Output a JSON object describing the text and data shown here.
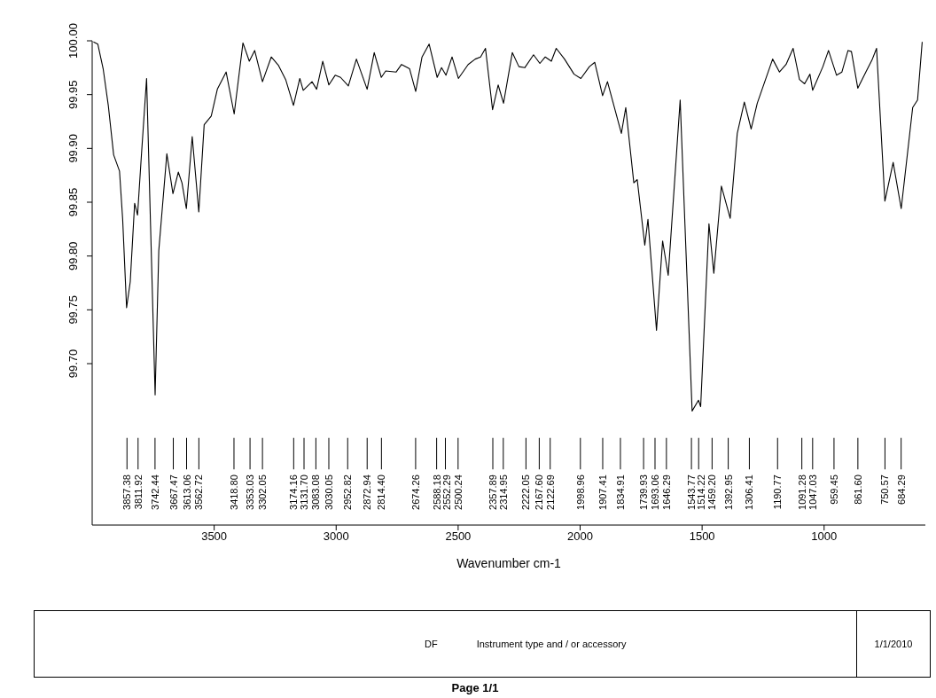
{
  "chart_data": {
    "type": "line",
    "xlabel": "Wavenumber cm-1",
    "xlim": [
      4000,
      585
    ],
    "xticks": [
      3500,
      3000,
      2500,
      2000,
      1500,
      1000
    ],
    "ylim": [
      99.55,
      100.0
    ],
    "yticks": [
      {
        "value": 99.7,
        "label": "99.70"
      },
      {
        "value": 99.75,
        "label": "99.75"
      },
      {
        "value": 99.8,
        "label": "99.80"
      },
      {
        "value": 99.85,
        "label": "99.85"
      },
      {
        "value": 99.9,
        "label": "99.90"
      },
      {
        "value": 99.95,
        "label": "99.95"
      },
      {
        "value": 100.0,
        "label": "100.00"
      }
    ],
    "marker": "none",
    "line_style": "solid",
    "series": [
      {
        "color": "#000000",
        "x": [
          3995,
          3977,
          3955,
          3934,
          3912,
          3888,
          3875,
          3859,
          3844,
          3826,
          3814,
          3799,
          3777,
          3742,
          3727,
          3694,
          3669,
          3647,
          3632,
          3614,
          3590,
          3563,
          3541,
          3512,
          3487,
          3451,
          3418,
          3382,
          3356,
          3334,
          3302,
          3266,
          3236,
          3207,
          3175,
          3149,
          3135,
          3099,
          3080,
          3055,
          3030,
          3004,
          2982,
          2950,
          2917,
          2873,
          2844,
          2815,
          2797,
          2754,
          2732,
          2699,
          2674,
          2648,
          2619,
          2586,
          2568,
          2550,
          2525,
          2499,
          2459,
          2430,
          2408,
          2388,
          2359,
          2336,
          2314,
          2278,
          2251,
          2227,
          2191,
          2165,
          2143,
          2118,
          2098,
          2064,
          2025,
          1997,
          1962,
          1940,
          1908,
          1888,
          1831,
          1813,
          1780,
          1766,
          1735,
          1722,
          1687,
          1662,
          1639,
          1590,
          1541,
          1515,
          1506,
          1472,
          1452,
          1421,
          1385,
          1356,
          1327,
          1299,
          1274,
          1211,
          1183,
          1156,
          1127,
          1101,
          1080,
          1058,
          1047,
          1005,
          982,
          949,
          927,
          902,
          888,
          862,
          829,
          804,
          785,
          751,
          717,
          684,
          637,
          617,
          598
        ],
        "values": [
          99.999,
          99.997,
          99.974,
          99.94,
          99.894,
          99.879,
          99.834,
          99.752,
          99.776,
          99.849,
          99.838,
          99.891,
          99.965,
          99.671,
          99.805,
          99.895,
          99.858,
          99.878,
          99.868,
          99.844,
          99.911,
          99.841,
          99.922,
          99.93,
          99.955,
          99.971,
          99.932,
          99.998,
          99.981,
          99.991,
          99.962,
          99.985,
          99.977,
          99.964,
          99.94,
          99.965,
          99.954,
          99.962,
          99.955,
          99.981,
          99.959,
          99.968,
          99.966,
          99.958,
          99.983,
          99.955,
          99.989,
          99.966,
          99.972,
          99.971,
          99.978,
          99.974,
          99.953,
          99.985,
          99.997,
          99.966,
          99.975,
          99.968,
          99.985,
          99.965,
          99.978,
          99.983,
          99.985,
          99.993,
          99.936,
          99.959,
          99.942,
          99.989,
          99.976,
          99.975,
          99.987,
          99.979,
          99.985,
          99.981,
          99.993,
          99.983,
          99.969,
          99.965,
          99.976,
          99.98,
          99.949,
          99.962,
          99.914,
          99.938,
          99.868,
          99.871,
          99.81,
          99.834,
          99.731,
          99.814,
          99.782,
          99.945,
          99.656,
          99.666,
          99.66,
          99.83,
          99.784,
          99.865,
          99.835,
          99.914,
          99.943,
          99.918,
          99.942,
          99.983,
          99.971,
          99.978,
          99.993,
          99.964,
          99.96,
          99.969,
          99.954,
          99.976,
          99.991,
          99.968,
          99.971,
          99.991,
          99.99,
          99.956,
          99.971,
          99.982,
          99.993,
          99.851,
          99.887,
          99.844,
          99.938,
          99.945,
          99.999
        ]
      }
    ],
    "annotations": [
      {
        "text": "3857.38",
        "x": 3857.38
      },
      {
        "text": "3811.92",
        "x": 3811.92
      },
      {
        "text": "3742.44",
        "x": 3742.44
      },
      {
        "text": "3667.47",
        "x": 3667.47
      },
      {
        "text": "3613.06",
        "x": 3613.06
      },
      {
        "text": "3562.72",
        "x": 3562.72
      },
      {
        "text": "3418.80",
        "x": 3418.8
      },
      {
        "text": "3353.03",
        "x": 3353.03
      },
      {
        "text": "3302.05",
        "x": 3302.05
      },
      {
        "text": "3174.16",
        "x": 3174.16
      },
      {
        "text": "3131.70",
        "x": 3131.7
      },
      {
        "text": "3083.08",
        "x": 3083.08
      },
      {
        "text": "3030.05",
        "x": 3030.05
      },
      {
        "text": "2952.82",
        "x": 2952.82
      },
      {
        "text": "2872.94",
        "x": 2872.94
      },
      {
        "text": "2814.40",
        "x": 2814.4
      },
      {
        "text": "2674.26",
        "x": 2674.26
      },
      {
        "text": "2588.18",
        "x": 2588.18
      },
      {
        "text": "2552.29",
        "x": 2552.29
      },
      {
        "text": "2500.24",
        "x": 2500.24
      },
      {
        "text": "2357.89",
        "x": 2357.89
      },
      {
        "text": "2314.95",
        "x": 2314.95
      },
      {
        "text": "2222.05",
        "x": 2222.05
      },
      {
        "text": "2167.60",
        "x": 2167.6
      },
      {
        "text": "2122.69",
        "x": 2122.69
      },
      {
        "text": "1998.96",
        "x": 1998.96
      },
      {
        "text": "1907.41",
        "x": 1907.41
      },
      {
        "text": "1834.91",
        "x": 1834.91
      },
      {
        "text": "1739.93",
        "x": 1739.93
      },
      {
        "text": "1693.06",
        "x": 1693.06
      },
      {
        "text": "1646.29",
        "x": 1646.29
      },
      {
        "text": "1543.77",
        "x": 1543.77
      },
      {
        "text": "1514.22",
        "x": 1514.22
      },
      {
        "text": "1459.20",
        "x": 1459.2
      },
      {
        "text": "1392.95",
        "x": 1392.95
      },
      {
        "text": "1306.41",
        "x": 1306.41
      },
      {
        "text": "1190.77",
        "x": 1190.77
      },
      {
        "text": "1091.28",
        "x": 1091.28
      },
      {
        "text": "1047.03",
        "x": 1047.03
      },
      {
        "text": "959.45",
        "x": 959.45
      },
      {
        "text": "861.60",
        "x": 861.6
      },
      {
        "text": "750.57",
        "x": 750.57
      },
      {
        "text": "684.29",
        "x": 684.29
      },
      "DF",
      "Instrument type and / or accessory",
      "1/1/2010",
      "Page 1/1"
    ]
  }
}
